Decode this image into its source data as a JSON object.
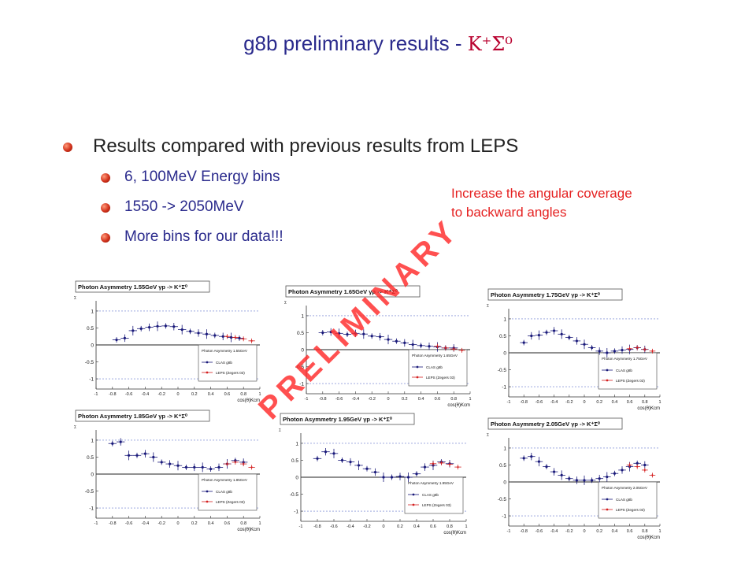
{
  "slide": {
    "title_prefix": "g8b preliminary results - ",
    "title_formula": "Κ⁺Σ⁰",
    "bullet_main": "Results compared with previous results from LEPS",
    "sub_bullets": [
      "6, 100MeV Energy bins",
      "1550 -> 2050MeV",
      "More bins for our data!!!"
    ],
    "note_line1": "Increase the angular coverage",
    "note_line2": "to backward angles",
    "watermark": "PRELIMINARY"
  },
  "colors": {
    "title": "#2a2a8c",
    "accent": "#e52121",
    "clas": "#1a1a7a",
    "leps": "#d42020"
  },
  "chart_data": [
    {
      "type": "scatter",
      "title": "Photon Asymmetry 1.55GeV γp -> K⁺Σ⁰",
      "legend_title": "Photon Asymmetry 1.55GeV",
      "xlabel": "cos(θ)Kcm",
      "ylim": [
        -1.3,
        1.3
      ],
      "xlim": [
        -1,
        1
      ],
      "x_ticks": [
        "-1",
        "-0.8",
        "-0.6",
        "-0.4",
        "-0.2",
        "0",
        "0.2",
        "0.4",
        "0.6",
        "0.8",
        "1"
      ],
      "y_ticks": [
        "1",
        "0.5",
        "0",
        "-0.5",
        "-1"
      ],
      "series": [
        {
          "name": "CLAS g8b",
          "x": [
            -0.75,
            -0.65,
            -0.55,
            -0.45,
            -0.35,
            -0.25,
            -0.15,
            -0.05,
            0.05,
            0.15,
            0.25,
            0.35,
            0.45,
            0.55,
            0.65,
            0.75
          ],
          "y": [
            0.15,
            0.2,
            0.42,
            0.48,
            0.52,
            0.55,
            0.56,
            0.54,
            0.45,
            0.4,
            0.35,
            0.32,
            0.28,
            0.25,
            0.22,
            0.2
          ]
        },
        {
          "name": "LEPS (Zegers 03)",
          "x": [
            0.6,
            0.7,
            0.8,
            0.9
          ],
          "y": [
            0.25,
            0.22,
            0.18,
            0.12
          ]
        }
      ]
    },
    {
      "type": "scatter",
      "title": "Photon Asymmetry 1.65GeV γp -> K⁺Σ⁰",
      "legend_title": "Photon Asymmetry 1.65GeV",
      "xlabel": "cos(θ)Kcm",
      "ylim": [
        -1.3,
        1.3
      ],
      "xlim": [
        -1,
        1
      ],
      "x_ticks": [
        "-1",
        "-0.8",
        "-0.6",
        "-0.4",
        "-0.2",
        "0",
        "0.2",
        "0.4",
        "0.6",
        "0.8",
        "1"
      ],
      "y_ticks": [
        "1",
        "0.5",
        "0",
        "-0.5",
        "-1"
      ],
      "series": [
        {
          "name": "CLAS g8b",
          "x": [
            -0.8,
            -0.7,
            -0.6,
            -0.5,
            -0.4,
            -0.3,
            -0.2,
            -0.1,
            0,
            0.1,
            0.2,
            0.3,
            0.4,
            0.5,
            0.6,
            0.7,
            0.8
          ],
          "y": [
            0.5,
            0.52,
            0.48,
            0.45,
            0.48,
            0.46,
            0.4,
            0.38,
            0.3,
            0.25,
            0.2,
            0.15,
            0.12,
            0.1,
            0.08,
            0.05,
            0.05
          ]
        },
        {
          "name": "LEPS (Zegers 03)",
          "x": [
            0.6,
            0.7,
            0.8,
            0.9
          ],
          "y": [
            0.1,
            0.05,
            0.02,
            -0.02
          ]
        }
      ]
    },
    {
      "type": "scatter",
      "title": "Photon Asymmetry 1.75GeV γp -> K⁺Σ⁰",
      "legend_title": "Photon Asymmetry 1.75GeV",
      "xlabel": "cos(θ)Kcm",
      "ylim": [
        -1.3,
        1.3
      ],
      "xlim": [
        -1,
        1
      ],
      "x_ticks": [
        "-1",
        "-0.8",
        "-0.6",
        "-0.4",
        "-0.2",
        "0",
        "0.2",
        "0.4",
        "0.6",
        "0.8",
        "1"
      ],
      "y_ticks": [
        "1",
        "0.5",
        "0",
        "-0.5",
        "-1"
      ],
      "series": [
        {
          "name": "CLAS g8b",
          "x": [
            -0.8,
            -0.7,
            -0.6,
            -0.5,
            -0.4,
            -0.3,
            -0.2,
            -0.1,
            0,
            0.1,
            0.2,
            0.3,
            0.4,
            0.5,
            0.6,
            0.7,
            0.8
          ],
          "y": [
            0.3,
            0.5,
            0.52,
            0.6,
            0.65,
            0.55,
            0.45,
            0.35,
            0.25,
            0.15,
            0.05,
            0.0,
            0.05,
            0.08,
            0.1,
            0.15,
            0.1
          ]
        },
        {
          "name": "LEPS (Zegers 03)",
          "x": [
            0.6,
            0.7,
            0.8,
            0.9
          ],
          "y": [
            0.12,
            0.15,
            0.1,
            0.05
          ]
        }
      ]
    },
    {
      "type": "scatter",
      "title": "Photon Asymmetry 1.85GeV γp -> K⁺Σ⁰",
      "legend_title": "Photon Asymmetry 1.85GeV",
      "xlabel": "cos(θ)Kcm",
      "ylim": [
        -1.3,
        1.3
      ],
      "xlim": [
        -1,
        1
      ],
      "x_ticks": [
        "-1",
        "-0.8",
        "-0.6",
        "-0.4",
        "-0.2",
        "0",
        "0.2",
        "0.4",
        "0.6",
        "0.8",
        "1"
      ],
      "y_ticks": [
        "1",
        "0.5",
        "0",
        "-0.5",
        "-1"
      ],
      "series": [
        {
          "name": "CLAS g8b",
          "x": [
            -0.8,
            -0.7,
            -0.6,
            -0.5,
            -0.4,
            -0.3,
            -0.2,
            -0.1,
            0,
            0.1,
            0.2,
            0.3,
            0.4,
            0.5,
            0.6,
            0.7,
            0.8
          ],
          "y": [
            0.9,
            0.95,
            0.55,
            0.55,
            0.6,
            0.5,
            0.35,
            0.3,
            0.25,
            0.2,
            0.2,
            0.2,
            0.15,
            0.2,
            0.3,
            0.4,
            0.35
          ]
        },
        {
          "name": "LEPS (Zegers 03)",
          "x": [
            0.6,
            0.7,
            0.8,
            0.9
          ],
          "y": [
            0.3,
            0.35,
            0.3,
            0.2
          ]
        }
      ]
    },
    {
      "type": "scatter",
      "title": "Photon Asymmetry 1.95GeV γp -> K⁺Σ⁰",
      "legend_title": "Photon Asymmetry 1.95GeV",
      "xlabel": "cos(θ)Kcm",
      "ylim": [
        -1.3,
        1.3
      ],
      "xlim": [
        -1,
        1
      ],
      "x_ticks": [
        "-1",
        "-0.8",
        "-0.6",
        "-0.4",
        "-0.2",
        "0",
        "0.2",
        "0.4",
        "0.6",
        "0.8",
        "1"
      ],
      "y_ticks": [
        "1",
        "0.5",
        "0",
        "-0.5",
        "-1"
      ],
      "series": [
        {
          "name": "CLAS g8b",
          "x": [
            -0.8,
            -0.7,
            -0.6,
            -0.5,
            -0.4,
            -0.3,
            -0.2,
            -0.1,
            0,
            0.1,
            0.2,
            0.3,
            0.4,
            0.5,
            0.6,
            0.7,
            0.8
          ],
          "y": [
            0.55,
            0.75,
            0.7,
            0.5,
            0.45,
            0.35,
            0.25,
            0.15,
            0.0,
            0.0,
            0.02,
            0.0,
            0.1,
            0.3,
            0.35,
            0.45,
            0.4
          ]
        },
        {
          "name": "LEPS (Zegers 03)",
          "x": [
            0.6,
            0.7,
            0.8,
            0.9
          ],
          "y": [
            0.4,
            0.42,
            0.38,
            0.3
          ]
        }
      ]
    },
    {
      "type": "scatter",
      "title": "Photon Asymmetry 2.05GeV γp -> K⁺Σ⁰",
      "legend_title": "Photon Asymmetry 2.05GeV",
      "xlabel": "cos(θ)Kcm",
      "ylim": [
        -1.3,
        1.3
      ],
      "xlim": [
        -1,
        1
      ],
      "x_ticks": [
        "-1",
        "-0.8",
        "-0.6",
        "-0.4",
        "-0.2",
        "0",
        "0.2",
        "0.4",
        "0.6",
        "0.8",
        "1"
      ],
      "y_ticks": [
        "1",
        "0.5",
        "0",
        "-0.5",
        "-1"
      ],
      "series": [
        {
          "name": "CLAS g8b",
          "x": [
            -0.8,
            -0.7,
            -0.6,
            -0.5,
            -0.4,
            -0.3,
            -0.2,
            -0.1,
            0,
            0.1,
            0.2,
            0.3,
            0.4,
            0.5,
            0.6,
            0.7,
            0.8
          ],
          "y": [
            0.7,
            0.75,
            0.6,
            0.45,
            0.3,
            0.2,
            0.1,
            0.05,
            0.05,
            0.05,
            0.1,
            0.15,
            0.25,
            0.35,
            0.45,
            0.55,
            0.5
          ]
        },
        {
          "name": "LEPS (Zegers 03)",
          "x": [
            0.6,
            0.7,
            0.8,
            0.9
          ],
          "y": [
            0.5,
            0.45,
            0.35,
            0.2
          ]
        }
      ]
    }
  ]
}
